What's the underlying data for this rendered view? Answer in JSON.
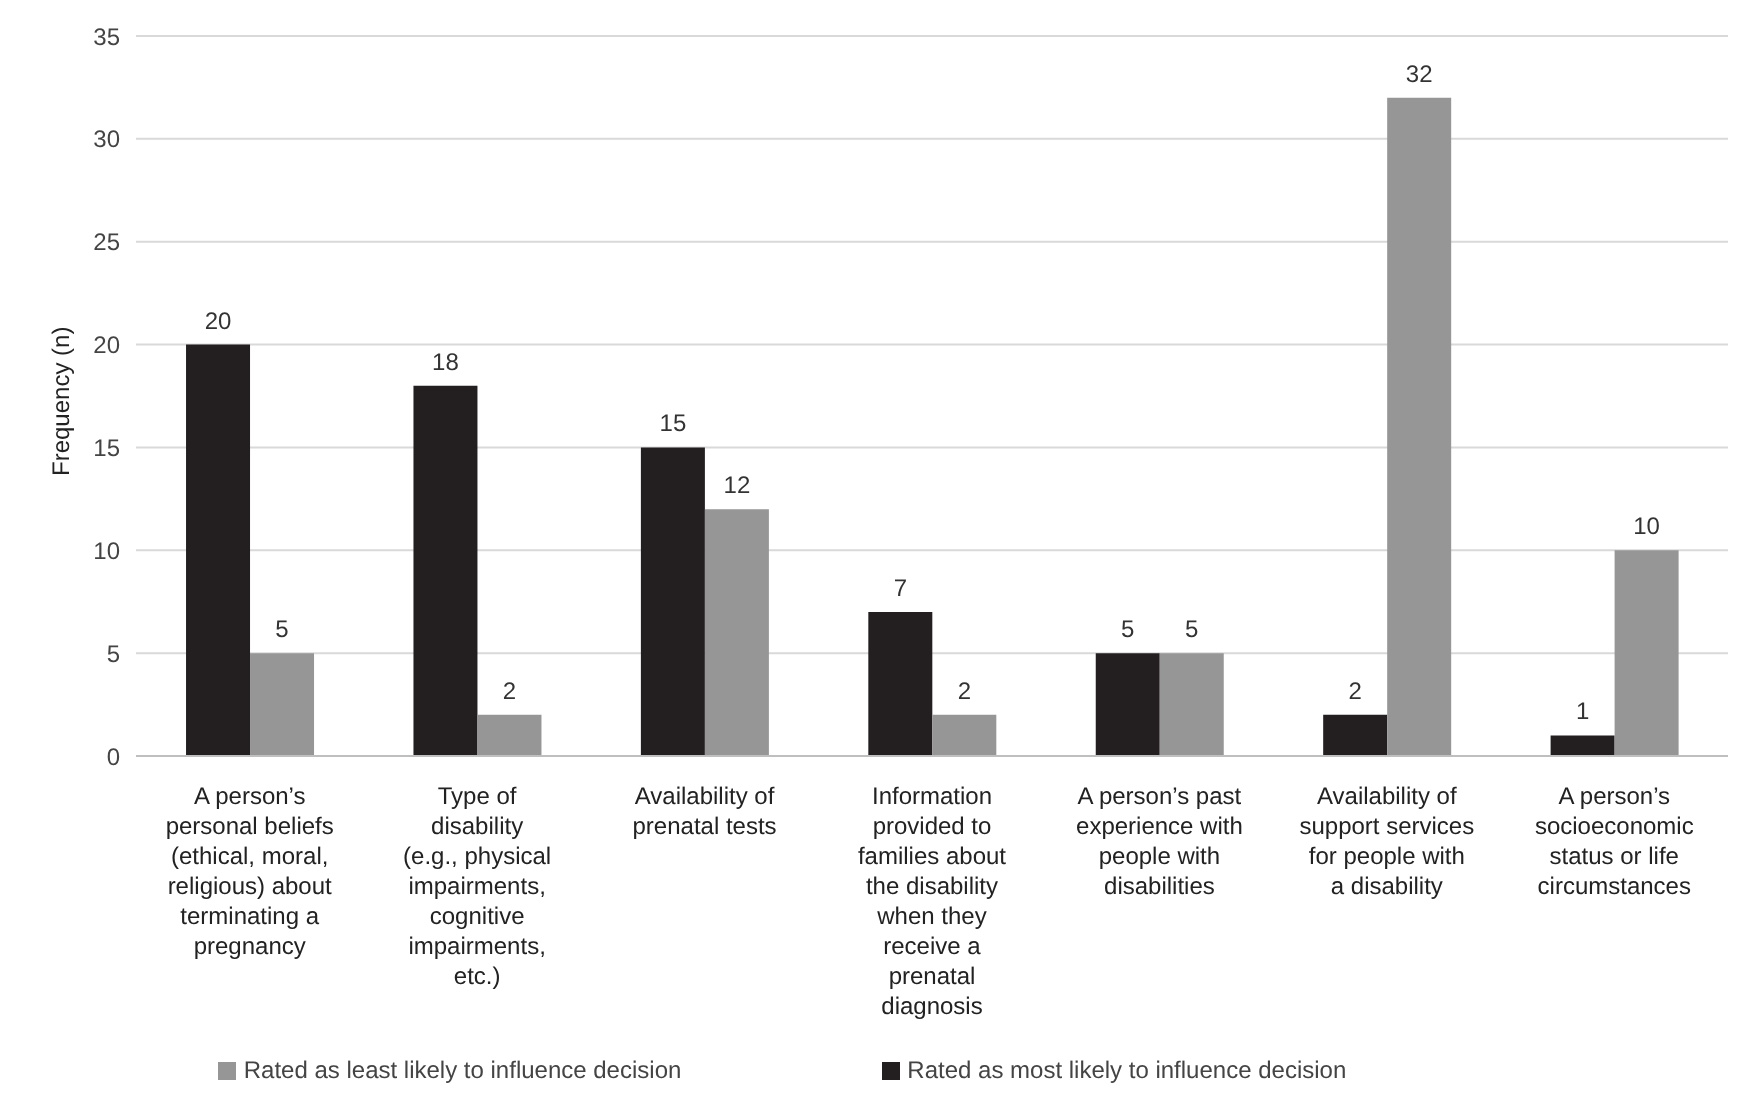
{
  "chart_data": {
    "type": "bar",
    "ylabel": "Frequency (n)",
    "categories": [
      "A person’s personal beliefs (ethical, moral, religious) about terminating a pregnancy",
      "Type of disability (e.g., physical impairments, cognitive impairments, etc.)",
      "Availability of prenatal tests",
      "Information provided to families about the disability when they receive a prenatal diagnosis",
      "A person’s past experience with people with disabilities",
      "Availability of support services for people with a disability",
      "A person’s socioeconomic status or life circumstances"
    ],
    "series": [
      {
        "name": "Rated as most likely to influence decision",
        "color": "#231f20",
        "values": [
          20,
          18,
          15,
          7,
          5,
          2,
          1
        ]
      },
      {
        "name": "Rated as least likely to influence decision",
        "color": "#969696",
        "values": [
          5,
          2,
          12,
          2,
          5,
          32,
          10
        ]
      }
    ],
    "ylim": [
      0,
      35
    ],
    "yticks": [
      0,
      5,
      10,
      15,
      20,
      25,
      30,
      35
    ],
    "grid": "y",
    "legend": "bottom",
    "data_labels": true
  }
}
